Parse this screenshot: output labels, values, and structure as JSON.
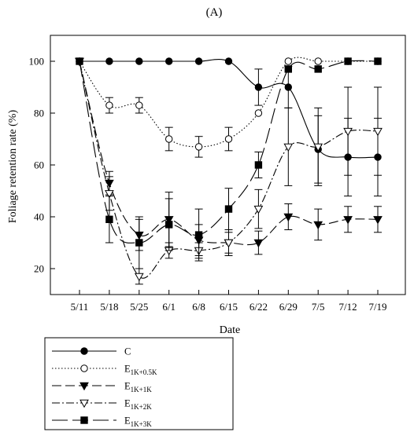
{
  "panel_label": "(A)",
  "chart_data": {
    "type": "line",
    "title": "",
    "xlabel": "Date",
    "ylabel": "Foliage retention rate (%)",
    "categories": [
      "5/11",
      "5/18",
      "5/25",
      "6/1",
      "6/8",
      "6/15",
      "6/22",
      "6/29",
      "7/5",
      "7/12",
      "7/19"
    ],
    "ylim": [
      10,
      110
    ],
    "yticks": [
      20,
      40,
      60,
      80,
      100
    ],
    "grid": false,
    "legend_position": "below-left",
    "series": [
      {
        "name": "C",
        "sub": "",
        "values": [
          100,
          100,
          100,
          100,
          100,
          100,
          90,
          90,
          66,
          63,
          63
        ],
        "errors": [
          0,
          0,
          0,
          0,
          0,
          0,
          7,
          8,
          13,
          15,
          15
        ],
        "marker": "circle-filled",
        "dash": "",
        "color": "#000000"
      },
      {
        "name": "E",
        "sub": "1K+0.5K",
        "values": [
          100,
          83,
          83,
          70,
          67,
          70,
          80,
          100,
          100,
          100,
          100
        ],
        "errors": [
          0,
          3,
          3,
          4.5,
          4,
          4.5,
          0,
          0,
          0,
          0,
          0
        ],
        "marker": "circle-open",
        "dash": "1.5,2.5",
        "color": "#000000"
      },
      {
        "name": "E",
        "sub": "1K+1K",
        "values": [
          100,
          53,
          33,
          39,
          31,
          30,
          30,
          40,
          37,
          39,
          39
        ],
        "errors": [
          0,
          4.5,
          6,
          10.5,
          6,
          5,
          4.5,
          5,
          6,
          5,
          5
        ],
        "marker": "triangle-down-filled",
        "dash": "12,5",
        "color": "#000000"
      },
      {
        "name": "E",
        "sub": "1K+2K",
        "values": [
          100,
          49,
          17,
          27,
          27,
          30,
          43,
          67,
          67,
          73,
          73
        ],
        "errors": [
          0,
          6.5,
          3,
          3,
          3,
          4,
          7.5,
          15,
          15,
          17,
          17
        ],
        "marker": "triangle-down-open",
        "dash": "10,3,2,3",
        "color": "#000000"
      },
      {
        "name": "E",
        "sub": "1K+3K",
        "values": [
          100,
          39,
          30,
          37,
          33,
          43,
          60,
          97,
          97,
          100,
          100
        ],
        "errors": [
          0,
          9,
          10,
          10,
          10,
          8,
          5,
          0,
          0,
          0,
          0
        ],
        "marker": "square-filled",
        "dash": "20,6",
        "color": "#000000"
      }
    ]
  }
}
